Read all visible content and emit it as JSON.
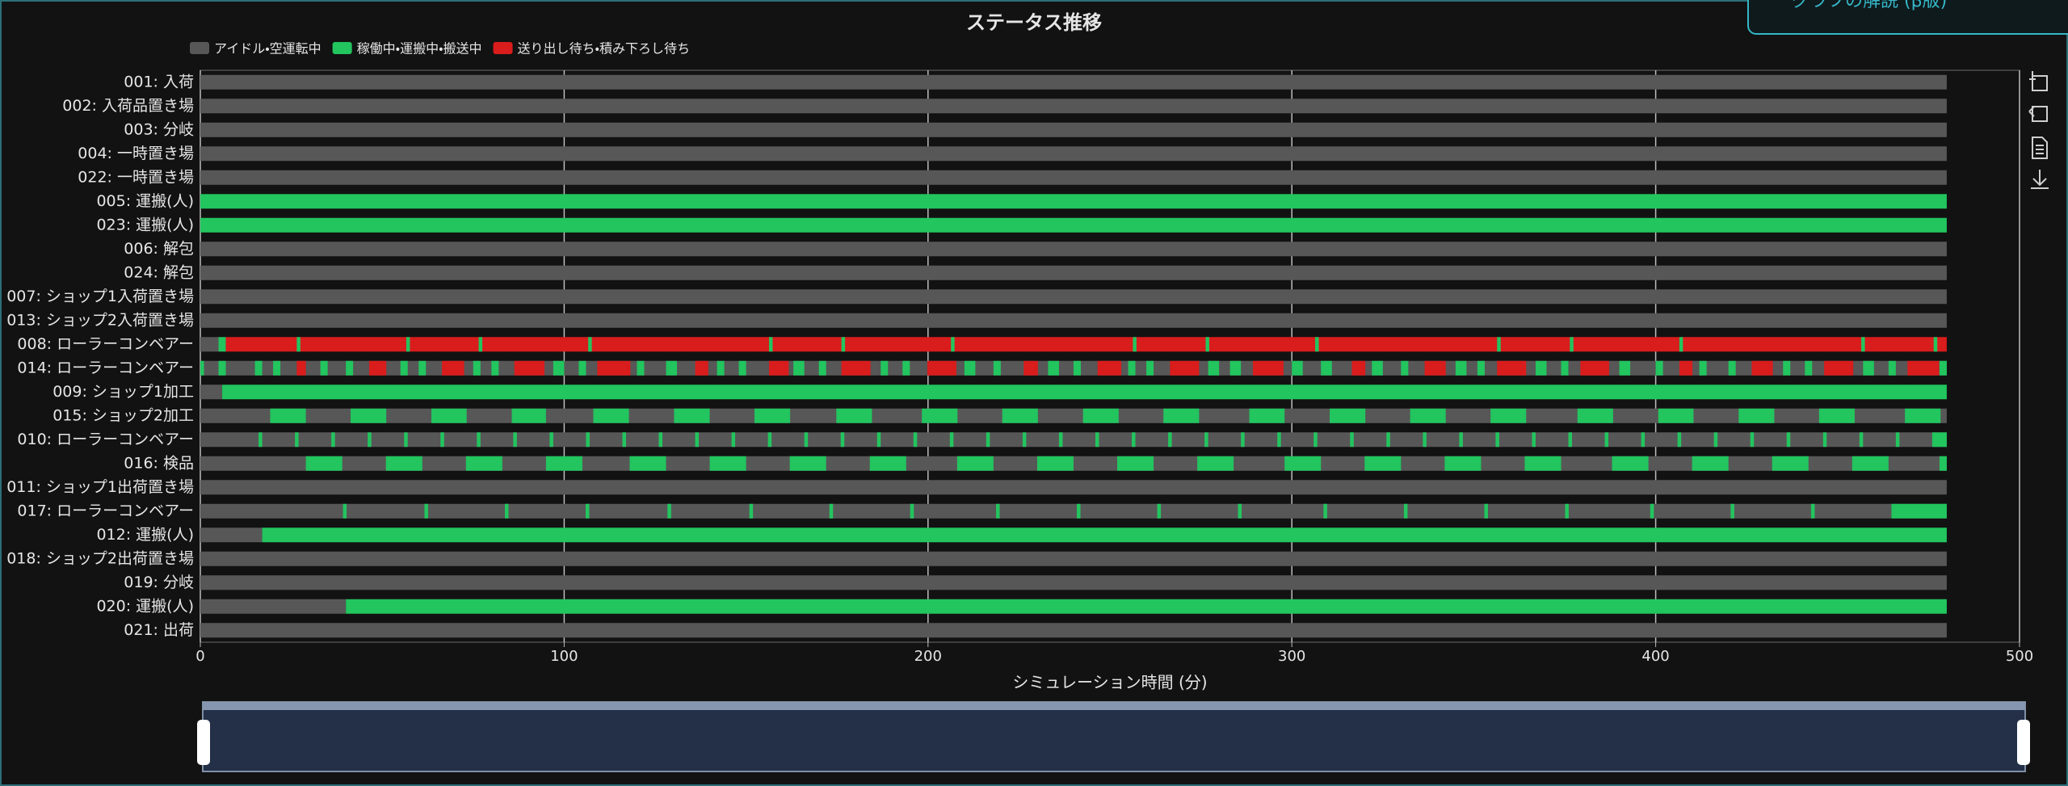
{
  "chart_data": {
    "type": "timeline",
    "title": "ステータス推移",
    "xlabel": "シミュレーション時間 (分)",
    "xlim": [
      0,
      500
    ],
    "xticks": [
      0,
      100,
      200,
      300,
      400,
      500
    ],
    "grid": true,
    "series": [
      {
        "name": "アイドル・空運転中",
        "color": "#575757"
      },
      {
        "name": "稼働中・運搬中・搬送中",
        "color": "#22c55e"
      },
      {
        "name": "送り出し待ち・積み下ろし待ち",
        "color": "#d91c1c"
      }
    ],
    "categories": [
      "001: 入荷",
      "002: 入荷品置き場",
      "003: 分岐",
      "004: 一時置き場",
      "022: 一時置き場",
      "005: 運搬(人)",
      "023: 運搬(人)",
      "006: 解包",
      "024: 解包",
      "007: ショップ1入荷置き場",
      "013: ショップ2入荷置き場",
      "008: ローラーコンベアー",
      "014: ローラーコンベアー",
      "009: ショップ1加工",
      "015: ショップ2加工",
      "010: ローラーコンベアー",
      "016: 検品",
      "011: ショップ1出荷置き場",
      "017: ローラーコンベアー",
      "012: 運搬(人)",
      "018: ショップ2出荷置き場",
      "019: 分岐",
      "020: 運搬(人)",
      "021: 出荷"
    ],
    "segments": [
      [
        [
          0,
          480,
          0
        ]
      ],
      [
        [
          0,
          480,
          0
        ]
      ],
      [
        [
          0,
          480,
          0
        ]
      ],
      [
        [
          0,
          480,
          0
        ]
      ],
      [
        [
          0,
          480,
          0
        ]
      ],
      [
        [
          0,
          480,
          1
        ]
      ],
      [
        [
          0,
          480,
          1
        ]
      ],
      [
        [
          0,
          480,
          0
        ]
      ],
      [
        [
          0,
          480,
          0
        ]
      ],
      [
        [
          0,
          480,
          0
        ]
      ],
      [
        [
          0,
          480,
          0
        ]
      ],
      [
        [
          0,
          5,
          0
        ],
        [
          5,
          7,
          1
        ],
        [
          7,
          480,
          2
        ],
        [
          26.5,
          27.5,
          1
        ],
        [
          56.6,
          57.6,
          1
        ],
        [
          76.5,
          77.5,
          1
        ],
        [
          106.6,
          107.6,
          1
        ],
        [
          156.3,
          157.3,
          1
        ],
        [
          176.2,
          177.2,
          1
        ],
        [
          206.3,
          207.3,
          1
        ],
        [
          256.3,
          257.3,
          1
        ],
        [
          276.3,
          277.3,
          1
        ],
        [
          306.4,
          307.4,
          1
        ],
        [
          356.4,
          357.4,
          1
        ],
        [
          376.4,
          377.4,
          1
        ],
        [
          406.5,
          407.5,
          1
        ],
        [
          456.5,
          457.5,
          1
        ],
        [
          476.4,
          477.4,
          1
        ]
      ],
      [
        [
          0,
          480,
          0
        ],
        [
          0,
          1,
          1
        ],
        [
          5,
          7,
          1
        ],
        [
          15,
          17,
          1
        ],
        [
          20,
          22,
          1
        ],
        [
          33,
          35,
          1
        ],
        [
          40,
          42,
          1
        ],
        [
          55,
          57,
          1
        ],
        [
          60,
          62,
          1
        ],
        [
          75,
          77,
          1
        ],
        [
          80,
          82,
          1
        ],
        [
          97,
          100,
          1
        ],
        [
          104,
          106,
          1
        ],
        [
          120,
          122,
          1
        ],
        [
          128,
          131,
          1
        ],
        [
          142,
          144,
          1
        ],
        [
          148,
          150,
          1
        ],
        [
          163,
          166,
          1
        ],
        [
          170,
          172,
          1
        ],
        [
          187,
          189,
          1
        ],
        [
          193,
          195,
          1
        ],
        [
          210,
          213,
          1
        ],
        [
          218,
          220,
          1
        ],
        [
          233,
          236,
          1
        ],
        [
          240,
          242,
          1
        ],
        [
          255,
          257,
          1
        ],
        [
          260,
          262,
          1
        ],
        [
          277,
          280,
          1
        ],
        [
          283,
          286,
          1
        ],
        [
          300,
          303,
          1
        ],
        [
          308,
          311,
          1
        ],
        [
          322,
          325,
          1
        ],
        [
          330,
          332,
          1
        ],
        [
          345,
          348,
          1
        ],
        [
          351,
          353,
          1
        ],
        [
          367,
          370,
          1
        ],
        [
          374,
          376,
          1
        ],
        [
          390,
          393,
          1
        ],
        [
          400,
          402,
          1
        ],
        [
          412,
          414,
          1
        ],
        [
          420,
          422,
          1
        ],
        [
          435,
          437,
          1
        ],
        [
          441,
          443,
          1
        ],
        [
          457,
          460,
          1
        ],
        [
          464,
          466,
          1
        ],
        [
          478,
          480,
          1
        ],
        [
          26.5,
          29,
          2
        ],
        [
          46.4,
          51.1,
          2
        ],
        [
          66.4,
          72.5,
          2
        ],
        [
          86.3,
          94.6,
          2
        ],
        [
          109.1,
          118.2,
          2
        ],
        [
          136,
          139.6,
          2
        ],
        [
          156.3,
          161.7,
          2
        ],
        [
          176.2,
          184.2,
          2
        ],
        [
          199.8,
          207.8,
          2
        ],
        [
          226.3,
          230.2,
          2
        ],
        [
          246.6,
          253.1,
          2
        ],
        [
          266.5,
          274.5,
          2
        ],
        [
          289.3,
          297.7,
          2
        ],
        [
          316.5,
          320.2,
          2
        ],
        [
          336.5,
          342.3,
          2
        ],
        [
          356.4,
          364.4,
          2
        ],
        [
          379.3,
          387.2,
          2
        ],
        [
          406.5,
          410.1,
          2
        ],
        [
          426.4,
          432.2,
          2
        ],
        [
          446.3,
          454.3,
          2
        ],
        [
          469.2,
          477.9,
          2
        ]
      ],
      [
        [
          0,
          6,
          0
        ],
        [
          6,
          480,
          1
        ]
      ],
      [
        [
          0,
          480,
          0
        ],
        [
          19.2,
          29,
          1
        ],
        [
          41.3,
          51.1,
          1
        ],
        [
          63.5,
          73.2,
          1
        ],
        [
          85.6,
          95,
          1
        ],
        [
          108,
          117.8,
          1
        ],
        [
          130.2,
          140,
          1
        ],
        [
          152.3,
          162.1,
          1
        ],
        [
          174.8,
          184.6,
          1
        ],
        [
          198.3,
          208.1,
          1
        ],
        [
          220.4,
          230.2,
          1
        ],
        [
          242.6,
          252.4,
          1
        ],
        [
          264.7,
          274.5,
          1
        ],
        [
          288.3,
          298,
          1
        ],
        [
          310.4,
          320.2,
          1
        ],
        [
          332.5,
          342.3,
          1
        ],
        [
          354.6,
          364.4,
          1
        ],
        [
          378.5,
          388.3,
          1
        ],
        [
          400.7,
          410.4,
          1
        ],
        [
          422.8,
          432.6,
          1
        ],
        [
          444.9,
          454.7,
          1
        ],
        [
          468.5,
          478.3,
          1
        ]
      ],
      [
        [
          0,
          480,
          0
        ],
        [
          16,
          17,
          1
        ],
        [
          26,
          27,
          1
        ],
        [
          36,
          37,
          1
        ],
        [
          46,
          47,
          1
        ],
        [
          56,
          57,
          1
        ],
        [
          66,
          67,
          1
        ],
        [
          76,
          77,
          1
        ],
        [
          86,
          87,
          1
        ],
        [
          96,
          97,
          1
        ],
        [
          106,
          107,
          1
        ],
        [
          116,
          117,
          1
        ],
        [
          126,
          127,
          1
        ],
        [
          136,
          137,
          1
        ],
        [
          146,
          147,
          1
        ],
        [
          156,
          157,
          1
        ],
        [
          166,
          167,
          1
        ],
        [
          176,
          177,
          1
        ],
        [
          186,
          187,
          1
        ],
        [
          196,
          197,
          1
        ],
        [
          206,
          207,
          1
        ],
        [
          216,
          217,
          1
        ],
        [
          226,
          227,
          1
        ],
        [
          236,
          237,
          1
        ],
        [
          246,
          247,
          1
        ],
        [
          256,
          257,
          1
        ],
        [
          266,
          267,
          1
        ],
        [
          276,
          277,
          1
        ],
        [
          286,
          287,
          1
        ],
        [
          296,
          297,
          1
        ],
        [
          306,
          307,
          1
        ],
        [
          316,
          317,
          1
        ],
        [
          326,
          327,
          1
        ],
        [
          336,
          337,
          1
        ],
        [
          346,
          347,
          1
        ],
        [
          356,
          357,
          1
        ],
        [
          366,
          367,
          1
        ],
        [
          376,
          377,
          1
        ],
        [
          386,
          387,
          1
        ],
        [
          396,
          397,
          1
        ],
        [
          406,
          407,
          1
        ],
        [
          416,
          417,
          1
        ],
        [
          426,
          427,
          1
        ],
        [
          436,
          437,
          1
        ],
        [
          446,
          447,
          1
        ],
        [
          456,
          457,
          1
        ],
        [
          466,
          467,
          1
        ],
        [
          476,
          480,
          1
        ]
      ],
      [
        [
          0,
          480,
          0
        ],
        [
          29,
          39,
          1
        ],
        [
          51,
          61,
          1
        ],
        [
          73,
          83,
          1
        ],
        [
          95,
          105,
          1
        ],
        [
          118,
          128,
          1
        ],
        [
          140,
          150,
          1
        ],
        [
          162,
          172,
          1
        ],
        [
          184,
          194,
          1
        ],
        [
          208,
          218,
          1
        ],
        [
          230,
          240,
          1
        ],
        [
          252,
          262,
          1
        ],
        [
          274,
          284,
          1
        ],
        [
          298,
          308,
          1
        ],
        [
          320,
          330,
          1
        ],
        [
          342,
          352,
          1
        ],
        [
          364,
          374,
          1
        ],
        [
          388,
          398,
          1
        ],
        [
          410,
          420,
          1
        ],
        [
          432,
          442,
          1
        ],
        [
          454,
          464,
          1
        ],
        [
          478,
          480,
          1
        ]
      ],
      [
        [
          0,
          480,
          0
        ]
      ],
      [
        [
          0,
          480,
          0
        ],
        [
          39.2,
          40.2,
          1
        ],
        [
          61.6,
          62.6,
          1
        ],
        [
          83.7,
          84.7,
          1
        ],
        [
          105.9,
          106.9,
          1
        ],
        [
          128.4,
          129.4,
          1
        ],
        [
          150.9,
          151.9,
          1
        ],
        [
          172.9,
          173.9,
          1
        ],
        [
          195.1,
          196.1,
          1
        ],
        [
          218.7,
          219.7,
          1
        ],
        [
          240.9,
          241.9,
          1
        ],
        [
          263,
          264,
          1
        ],
        [
          285.2,
          286.2,
          1
        ],
        [
          308.7,
          309.7,
          1
        ],
        [
          330.8,
          331.8,
          1
        ],
        [
          352.9,
          353.9,
          1
        ],
        [
          375.1,
          376.1,
          1
        ],
        [
          398.5,
          399.5,
          1
        ],
        [
          420.6,
          421.6,
          1
        ],
        [
          442.7,
          443.7,
          1
        ],
        [
          464.8,
          480,
          1
        ]
      ],
      [
        [
          0,
          17,
          0
        ],
        [
          17,
          480,
          1
        ]
      ],
      [
        [
          0,
          480,
          0
        ]
      ],
      [
        [
          0,
          480,
          0
        ]
      ],
      [
        [
          0,
          40,
          0
        ],
        [
          40,
          480,
          1
        ]
      ],
      [
        [
          0,
          480,
          0
        ]
      ]
    ]
  },
  "ui": {
    "explain_button": "グラフの解説 (β版)"
  }
}
